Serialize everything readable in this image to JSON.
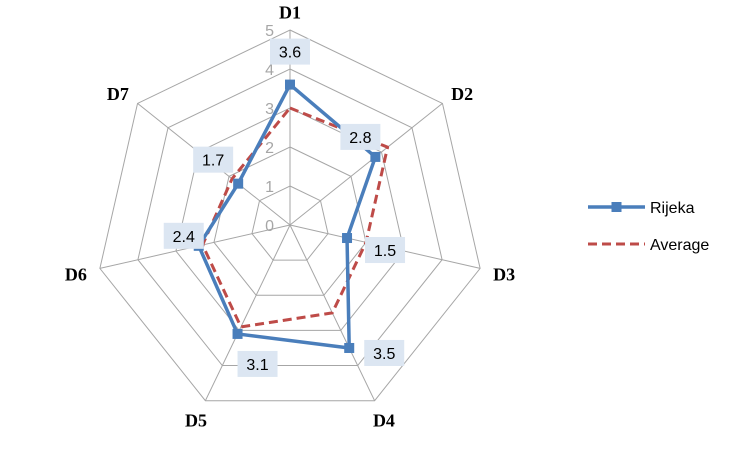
{
  "chart_data": {
    "type": "radar",
    "categories": [
      "D1",
      "D2",
      "D3",
      "D4",
      "D5",
      "D6",
      "D7"
    ],
    "rlim": [
      0,
      5
    ],
    "ticks": [
      "0",
      "1",
      "2",
      "3",
      "4",
      "5"
    ],
    "grid": true,
    "legend_position": "right",
    "series": [
      {
        "name": "Rijeka",
        "values": [
          3.6,
          2.8,
          1.5,
          3.5,
          3.1,
          2.4,
          1.7
        ],
        "labels": [
          "3.6",
          "2.8",
          "1.5",
          "3.5",
          "3.1",
          "2.4",
          "1.7"
        ],
        "color": "#4a7ebb",
        "line_style": "solid",
        "marker": "square"
      },
      {
        "name": "Average",
        "values": [
          3.0,
          3.2,
          2.0,
          2.5,
          2.9,
          2.3,
          1.9
        ],
        "color": "#be4b48",
        "line_style": "dashed",
        "marker": "none"
      }
    ],
    "label_background": "#dce6f2"
  }
}
